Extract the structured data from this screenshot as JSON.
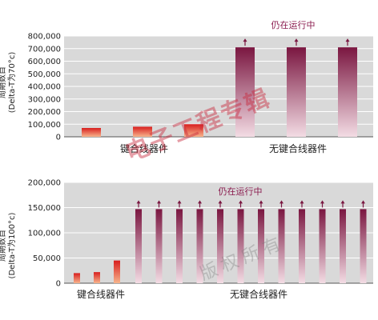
{
  "watermark": {
    "main": "电子工程专辑",
    "sub": "版权所有"
  },
  "chart_data": [
    {
      "type": "bar",
      "ylabel_line1": "周期数目",
      "ylabel_line2": "(Delta-T为70°c)",
      "ylim": [
        0,
        800000
      ],
      "yticks": [
        "0",
        "100,000",
        "200,000",
        "300,000",
        "400,000",
        "500,000",
        "600,000",
        "700,000",
        "800,000"
      ],
      "grid": true,
      "group_labels": [
        "键合线器件",
        "无键合线器件"
      ],
      "annotation": "仍在运行中",
      "series": [
        {
          "group": "键合线器件",
          "values": [
            70000,
            80000,
            100000
          ],
          "still_running": [
            false,
            false,
            false
          ]
        },
        {
          "group": "无键合线器件",
          "values": [
            710000,
            710000,
            710000
          ],
          "still_running": [
            true,
            true,
            true
          ]
        }
      ],
      "colors": {
        "wire_top": "#d81e1e",
        "wire_bottom": "#f7b48c",
        "free_top": "#7a1640",
        "free_bottom": "#f3dce4"
      }
    },
    {
      "type": "bar",
      "ylabel_line1": "周期数目",
      "ylabel_line2": "(Delta-T为100°c)",
      "ylim": [
        0,
        200000
      ],
      "yticks": [
        "0",
        "50,000",
        "100,000",
        "150,000",
        "200,000"
      ],
      "grid": true,
      "group_labels": [
        "键合线器件",
        "无键合线器件"
      ],
      "annotation": "仍在运行中",
      "series": [
        {
          "group": "键合线器件",
          "values": [
            20000,
            22000,
            45000
          ],
          "still_running": [
            false,
            false,
            false
          ]
        },
        {
          "group": "无键合线器件",
          "values": [
            147000,
            147000,
            147000,
            147000,
            147000,
            147000,
            147000,
            147000,
            147000,
            147000,
            147000,
            147000
          ],
          "still_running": [
            true,
            true,
            true,
            true,
            true,
            true,
            true,
            true,
            true,
            true,
            true,
            true
          ]
        }
      ],
      "colors": {
        "wire_top": "#d81e1e",
        "wire_bottom": "#f7b48c",
        "free_top": "#7a1640",
        "free_bottom": "#f3dce4"
      }
    }
  ]
}
